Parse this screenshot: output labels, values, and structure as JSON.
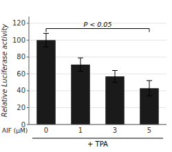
{
  "chart_data": {
    "type": "bar",
    "categories": [
      "0",
      "1",
      "3",
      "5"
    ],
    "values": [
      100,
      71,
      57,
      43
    ],
    "errors": [
      8,
      8,
      7,
      9
    ],
    "color": "#1a1a1a",
    "xlabel": "AIF (μM)",
    "ylabel": "Relative Luciferase activity",
    "ylim": [
      0,
      128
    ],
    "yticks": [
      0,
      20,
      40,
      60,
      80,
      100,
      120
    ],
    "annotations": [
      {
        "text": "P < 0.05"
      },
      {
        "text": "+ TPA"
      }
    ]
  }
}
